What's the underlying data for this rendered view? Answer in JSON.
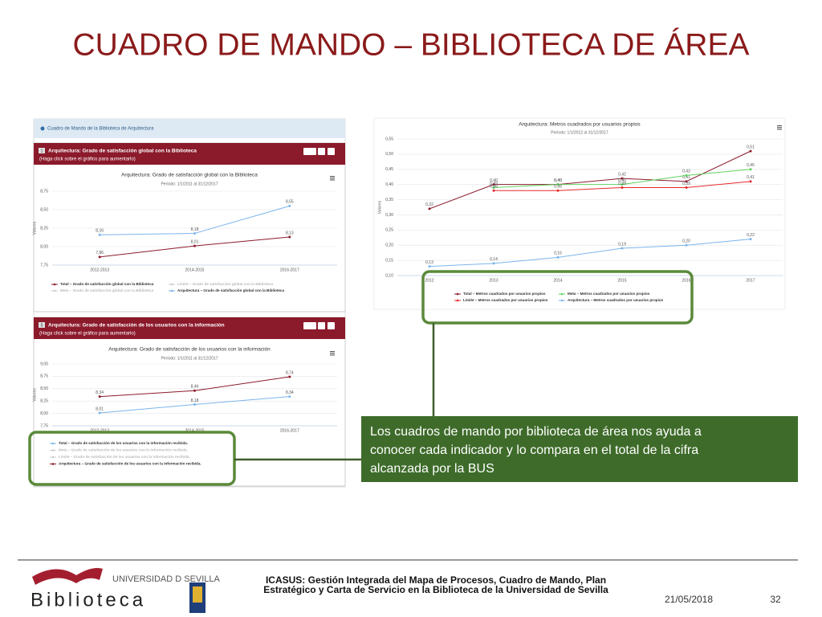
{
  "title": "CUADRO DE MANDO – BIBLIOTECA DE ÁREA",
  "panel_title": "Cuadro de Mando de la Biblioteca de Arquitectura",
  "panels": [
    {
      "badge": "1",
      "header": "Arquitectura: Grado de satisfacción global con la Biblioteca",
      "hint": "(Haga click sobre el gráfico para aumentarlo)"
    },
    {
      "badge": "5",
      "header": "Arquitectura: Grado de satisfacción de los usuarios con la información",
      "hint": "(Haga click sobre el gráfico para aumentarlo)"
    }
  ],
  "chart_data": [
    {
      "type": "line",
      "title": "Arquitectura: Grado de satisfacción global con la Biblioteca",
      "subtitle": "Período: 1/1/2011 al 31/12/2017",
      "y_label": "Valores",
      "categories": [
        "2012-2013",
        "2014-2015",
        "2016-2017"
      ],
      "ylim": [
        7.75,
        8.75
      ],
      "yticks": [
        {
          "value": 7.75,
          "label": "7,75"
        },
        {
          "value": 8.0,
          "label": "8,00"
        },
        {
          "value": 8.25,
          "label": "8,25"
        },
        {
          "value": 8.5,
          "label": "8,50"
        },
        {
          "value": 8.75,
          "label": "8,75"
        }
      ],
      "series": [
        {
          "name": "Total – Grado de satisfacción global con la Biblioteca",
          "color": "#8b1a2b",
          "values": [
            7.86,
            8.01,
            8.13
          ],
          "value_labels": [
            "7,86",
            "8,01",
            "8,13"
          ]
        },
        {
          "name": "Límite – Grado de satisfacción global con la Biblioteca",
          "color": "#cccccc",
          "hidden": true
        },
        {
          "name": "Meta – Grado de satisfacción global con la Biblioteca",
          "color": "#cccccc",
          "hidden": true
        },
        {
          "name": "Arquitectura – Grado de satisfacción global con la Biblioteca",
          "color": "#7cb5ec",
          "values": [
            8.16,
            8.18,
            8.55
          ],
          "value_labels": [
            "8,16",
            "8,18",
            "8,55"
          ]
        }
      ]
    },
    {
      "type": "line",
      "title": "Arquitectura: Grado de satisfacción de los usuarios con la información",
      "subtitle": "Período: 1/1/2011 al 31/12/2017",
      "y_label": "Valores",
      "categories": [
        "2012-2013",
        "2014-2015",
        "2016-2017"
      ],
      "ylim": [
        7.75,
        9.0
      ],
      "yticks": [
        {
          "value": 7.75,
          "label": "7,75"
        },
        {
          "value": 8.0,
          "label": "8,00"
        },
        {
          "value": 8.25,
          "label": "8,25"
        },
        {
          "value": 8.5,
          "label": "8,50"
        },
        {
          "value": 8.75,
          "label": "8,75"
        },
        {
          "value": 9.0,
          "label": "9,00"
        }
      ],
      "series": [
        {
          "name": "Total – Grado de satisfacción de los usuarios con la información recibida.",
          "color": "#7cb5ec",
          "values": [
            8.01,
            8.18,
            8.34
          ],
          "value_labels": [
            "8,01",
            "8,18",
            "8,34"
          ]
        },
        {
          "name": "Meta – Grado de satisfacción de los usuarios con la información recibida.",
          "color": "#cccccc",
          "hidden": true
        },
        {
          "name": "Límite – Grado de satisfacción de los usuarios con la información recibida.",
          "color": "#cccccc",
          "hidden": true
        },
        {
          "name": "Arquitectura – Grado de satisfacción de los usuarios con la información recibida.",
          "color": "#8b1a2b",
          "values": [
            8.34,
            8.46,
            8.74
          ],
          "value_labels": [
            "8,34",
            "8,46",
            "8,74"
          ]
        }
      ]
    },
    {
      "type": "line",
      "title": "Arquitectura: Metros cuadrados por usuarios propios",
      "subtitle": "Período: 1/1/2012 al 31/12/2017",
      "y_label": "Valores",
      "categories": [
        "2012",
        "2013",
        "2014",
        "2015",
        "2016",
        "2017"
      ],
      "ylim": [
        0.1,
        0.55
      ],
      "yticks": [
        {
          "value": 0.1,
          "label": "0,10"
        },
        {
          "value": 0.15,
          "label": "0,15"
        },
        {
          "value": 0.2,
          "label": "0,20"
        },
        {
          "value": 0.25,
          "label": "0,25"
        },
        {
          "value": 0.3,
          "label": "0,30"
        },
        {
          "value": 0.35,
          "label": "0,35"
        },
        {
          "value": 0.4,
          "label": "0,40"
        },
        {
          "value": 0.45,
          "label": "0,45"
        },
        {
          "value": 0.5,
          "label": "0,50"
        },
        {
          "value": 0.55,
          "label": "0,55"
        }
      ],
      "series": [
        {
          "name": "Total – Metros cuadrados por usuarios propios",
          "color": "#8b1a2b",
          "values": [
            0.32,
            0.4,
            0.4,
            0.42,
            0.41,
            0.51
          ],
          "value_labels": [
            "0,32",
            "0,40",
            "0,40",
            "0,42",
            "0,41",
            "0,51"
          ]
        },
        {
          "name": "Meta – Metros cuadrados por usuarios propios",
          "color": "#5fd35f",
          "values": [
            null,
            0.39,
            0.4,
            0.4,
            0.43,
            0.45
          ],
          "value_labels": [
            null,
            "0,39",
            "0,40",
            "0,40",
            "0,43",
            "0,45"
          ]
        },
        {
          "name": "Límite – Metros cuadrados por usuarios propios",
          "color": "#e8282b",
          "values": [
            null,
            0.38,
            0.38,
            0.39,
            0.39,
            0.41
          ],
          "value_labels": [
            null,
            "0,38",
            "0,38",
            "0,39",
            "0,39",
            "0,41"
          ]
        },
        {
          "name": "Arquitectura – Metros cuadrados por usuarios propios",
          "color": "#7cb5ec",
          "values": [
            0.13,
            0.14,
            0.16,
            0.19,
            0.2,
            0.22
          ],
          "value_labels": [
            "0,13",
            "0,14",
            "0,16",
            "0,19",
            "0,20",
            "0,22"
          ]
        }
      ]
    }
  ],
  "callout": [
    "Los cuadros de mando por biblioteca de área nos ayuda a",
    "conocer cada indicador y lo compara en el total de la cifra",
    "alcanzada por la BUS"
  ],
  "footer": {
    "text": [
      "ICASUS: Gestión Integrada del Mapa de Procesos, Cuadro de Mando, Plan",
      "Estratégico y Carta de Servicio en la Biblioteca de la Universidad de Sevilla"
    ],
    "date": "21/05/2018",
    "page": "32",
    "logo_university": "UNIVERSIDAD D SEVILLA",
    "logo_library": "Biblioteca"
  }
}
